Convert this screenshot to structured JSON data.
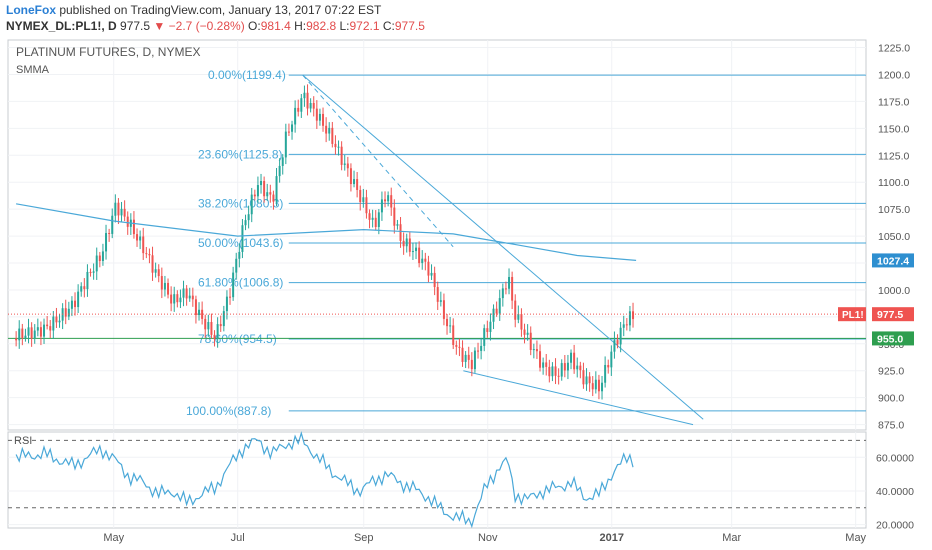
{
  "header": {
    "publisher": "LoneFox",
    "published_text": " published on TradingView.com, January 13, 2017 07:22 EST",
    "symbol": "NYMEX_DL:PL1!, D",
    "last": "977.5",
    "change": "−2.7 (−0.28%)",
    "o_label": "O:",
    "o": "981.4",
    "h_label": "H:",
    "h": "982.8",
    "l_label": "L:",
    "l": "972.1",
    "c_label": "C:",
    "c": "977.5"
  },
  "colors": {
    "fib": "#4aa8d8",
    "up": "#26a69a",
    "down": "#ef5350",
    "smma": "#4aa8d8",
    "support": "#2e9e4f",
    "price_line": "#ef5350",
    "rsi": "#4aa8d8",
    "grid": "#f0f2f5",
    "axis_text": "#555555"
  },
  "chart_data": [
    {
      "type": "candlestick",
      "title": "PLATINUM FUTURES, D, NYMEX",
      "indicator": "SMMA",
      "x_ticks": [
        "May",
        "Jul",
        "Sep",
        "Nov",
        "2017",
        "Mar",
        "May"
      ],
      "y_ticks": [
        "1225.0",
        "1200.0",
        "1175.0",
        "1150.0",
        "1125.0",
        "1100.0",
        "1075.0",
        "1050.0",
        "1025.0",
        "1000.0",
        "975.0",
        "950.0",
        "925.0",
        "900.0",
        "875.0"
      ],
      "ylim": [
        870,
        1232
      ],
      "grid": true,
      "price_path": [
        [
          "2016-03-14",
          955
        ],
        [
          "2016-03-28",
          968
        ],
        [
          "2016-04-11",
          985
        ],
        [
          "2016-04-25",
          1030
        ],
        [
          "2016-05-02",
          1080
        ],
        [
          "2016-05-09",
          1065
        ],
        [
          "2016-05-16",
          1040
        ],
        [
          "2016-05-23",
          1010
        ],
        [
          "2016-05-30",
          985
        ],
        [
          "2016-06-06",
          995
        ],
        [
          "2016-06-13",
          975
        ],
        [
          "2016-06-20",
          960
        ],
        [
          "2016-06-27",
          1000
        ],
        [
          "2016-07-04",
          1060
        ],
        [
          "2016-07-11",
          1095
        ],
        [
          "2016-07-18",
          1080
        ],
        [
          "2016-07-25",
          1145
        ],
        [
          "2016-08-02",
          1185
        ],
        [
          "2016-08-09",
          1165
        ],
        [
          "2016-08-16",
          1140
        ],
        [
          "2016-08-23",
          1110
        ],
        [
          "2016-08-30",
          1085
        ],
        [
          "2016-09-06",
          1060
        ],
        [
          "2016-09-12",
          1095
        ],
        [
          "2016-09-19",
          1050
        ],
        [
          "2016-09-26",
          1035
        ],
        [
          "2016-10-03",
          1015
        ],
        [
          "2016-10-10",
          975
        ],
        [
          "2016-10-17",
          945
        ],
        [
          "2016-10-24",
          935
        ],
        [
          "2016-10-31",
          965
        ],
        [
          "2016-11-07",
          990
        ],
        [
          "2016-11-11",
          1010
        ],
        [
          "2016-11-14",
          975
        ],
        [
          "2016-11-21",
          950
        ],
        [
          "2016-11-28",
          930
        ],
        [
          "2016-12-05",
          925
        ],
        [
          "2016-12-12",
          940
        ],
        [
          "2016-12-19",
          915
        ],
        [
          "2016-12-26",
          905
        ],
        [
          "2017-01-02",
          945
        ],
        [
          "2017-01-09",
          975
        ],
        [
          "2017-01-13",
          977.5
        ]
      ],
      "smma_path": [
        [
          "2016-03-14",
          1080
        ],
        [
          "2016-05-01",
          1064
        ],
        [
          "2016-07-01",
          1050
        ],
        [
          "2016-09-01",
          1056
        ],
        [
          "2016-10-15",
          1052
        ],
        [
          "2016-11-15",
          1042
        ],
        [
          "2016-12-15",
          1032
        ],
        [
          "2017-01-13",
          1027.4
        ]
      ],
      "fibonacci": [
        {
          "level": "0.00%",
          "price": 1199.4,
          "label": "0.00%(1199.4)"
        },
        {
          "level": "23.60%",
          "price": 1125.8,
          "label": "23.60%(1125.8)"
        },
        {
          "level": "38.20%",
          "price": 1080.3,
          "label": "38.20%(1080.3)"
        },
        {
          "level": "50.00%",
          "price": 1043.6,
          "label": "50.00%(1043.6)"
        },
        {
          "level": "61.80%",
          "price": 1006.8,
          "label": "61.80%(1006.8)"
        },
        {
          "level": "78.60%",
          "price": 954.5,
          "label": "78.60%(954.5)"
        },
        {
          "level": "100.00%",
          "price": 887.8,
          "label": "100.00%(887.8)"
        }
      ],
      "trendlines": [
        {
          "from": [
            "2016-08-02",
            1199.4
          ],
          "to": [
            "2017-02-15",
            880
          ]
        },
        {
          "from": [
            "2016-10-20",
            925
          ],
          "to": [
            "2017-02-10",
            875
          ]
        },
        {
          "from": [
            "2016-08-02",
            1199.4
          ],
          "to": [
            "2016-10-15",
            1040
          ],
          "dashed": true
        }
      ],
      "support": {
        "price": 955.0,
        "label": "955.0"
      },
      "smma_value": {
        "price": 1027.4,
        "label": "1027.4"
      },
      "last_price": {
        "price": 977.5,
        "label": "977.5",
        "tag": "PL1!"
      }
    },
    {
      "type": "line",
      "title": "RSI",
      "y_ticks": [
        "60.0000",
        "40.0000",
        "20.0000"
      ],
      "ylim": [
        18,
        75
      ],
      "bands": [
        70,
        30
      ],
      "rsi_path": [
        [
          "2016-03-14",
          60
        ],
        [
          "2016-03-28",
          62
        ],
        [
          "2016-04-11",
          55
        ],
        [
          "2016-04-25",
          65
        ],
        [
          "2016-05-02",
          58
        ],
        [
          "2016-05-09",
          48
        ],
        [
          "2016-05-16",
          45
        ],
        [
          "2016-05-23",
          38
        ],
        [
          "2016-05-30",
          40
        ],
        [
          "2016-06-06",
          33
        ],
        [
          "2016-06-13",
          38
        ],
        [
          "2016-06-20",
          42
        ],
        [
          "2016-06-27",
          55
        ],
        [
          "2016-07-04",
          66
        ],
        [
          "2016-07-11",
          70
        ],
        [
          "2016-07-18",
          62
        ],
        [
          "2016-07-25",
          68
        ],
        [
          "2016-08-02",
          70
        ],
        [
          "2016-08-09",
          60
        ],
        [
          "2016-08-16",
          52
        ],
        [
          "2016-08-23",
          45
        ],
        [
          "2016-08-30",
          40
        ],
        [
          "2016-09-06",
          46
        ],
        [
          "2016-09-12",
          50
        ],
        [
          "2016-09-19",
          45
        ],
        [
          "2016-09-26",
          41
        ],
        [
          "2016-10-03",
          36
        ],
        [
          "2016-10-10",
          28
        ],
        [
          "2016-10-17",
          24
        ],
        [
          "2016-10-24",
          22
        ],
        [
          "2016-10-31",
          42
        ],
        [
          "2016-11-07",
          55
        ],
        [
          "2016-11-11",
          58
        ],
        [
          "2016-11-14",
          38
        ],
        [
          "2016-11-21",
          35
        ],
        [
          "2016-11-28",
          40
        ],
        [
          "2016-12-05",
          42
        ],
        [
          "2016-12-12",
          45
        ],
        [
          "2016-12-19",
          36
        ],
        [
          "2016-12-26",
          38
        ],
        [
          "2017-01-02",
          52
        ],
        [
          "2017-01-09",
          60
        ],
        [
          "2017-01-13",
          58
        ]
      ]
    }
  ]
}
